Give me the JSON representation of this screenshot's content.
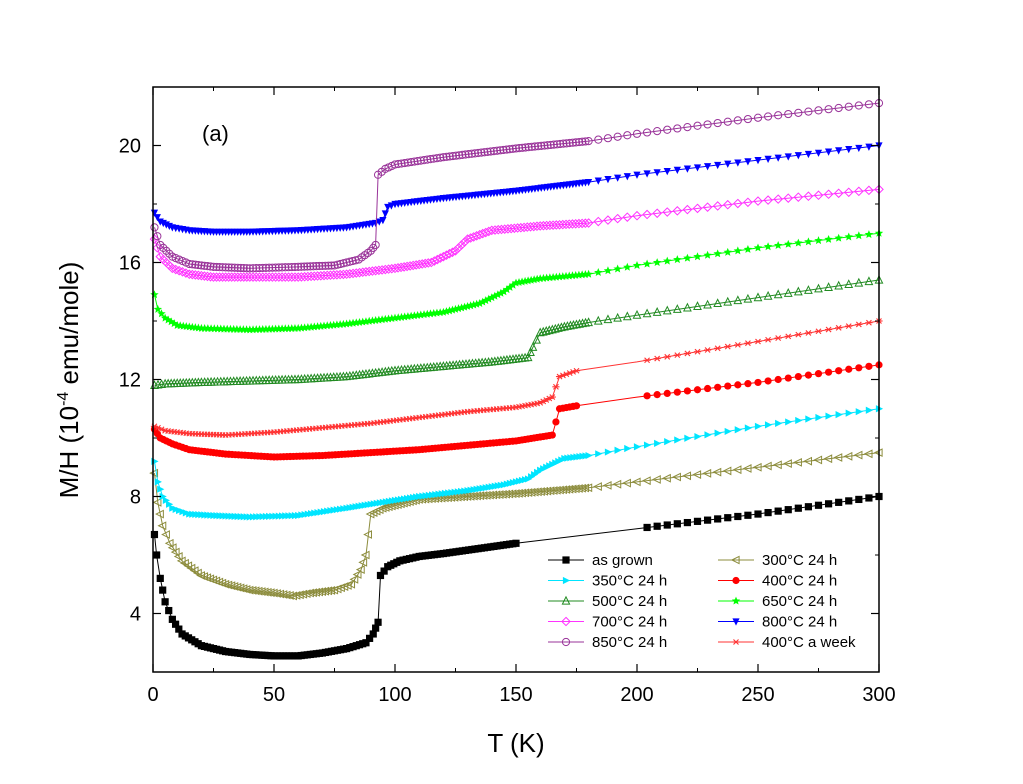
{
  "chart_data": {
    "type": "scatter",
    "panel_label": "(a)",
    "xlabel": "T (K)",
    "ylabel_parts": [
      "M/H (10",
      "-4",
      " emu/mole)"
    ],
    "xlim": [
      0,
      300
    ],
    "ylim": [
      2,
      22
    ],
    "x_ticks": [
      0,
      50,
      100,
      150,
      200,
      250,
      300
    ],
    "y_ticks": [
      4,
      8,
      12,
      16,
      20
    ],
    "grid": false,
    "legend_position": "bottom-right",
    "series": [
      {
        "name": "as grown",
        "color": "#000000",
        "marker": "square",
        "points": [
          [
            0.6,
            6.7
          ],
          [
            1.5,
            6.0
          ],
          [
            3,
            5.2
          ],
          [
            5,
            4.4
          ],
          [
            8,
            3.8
          ],
          [
            12,
            3.3
          ],
          [
            20,
            2.9
          ],
          [
            30,
            2.7
          ],
          [
            40,
            2.6
          ],
          [
            50,
            2.55
          ],
          [
            60,
            2.55
          ],
          [
            70,
            2.65
          ],
          [
            80,
            2.8
          ],
          [
            88,
            3.0
          ],
          [
            91,
            3.3
          ],
          [
            93,
            3.7
          ],
          [
            94,
            5.3
          ],
          [
            97,
            5.6
          ],
          [
            102,
            5.8
          ],
          [
            110,
            5.95
          ],
          [
            120,
            6.05
          ],
          [
            150,
            6.4
          ],
          [
            200,
            6.9
          ],
          [
            250,
            7.4
          ],
          [
            300,
            8.0
          ]
        ]
      },
      {
        "name": "300°C 24 h",
        "color": "#8c8c3c",
        "marker": "tri-left",
        "points": [
          [
            0.6,
            8.8
          ],
          [
            2,
            7.8
          ],
          [
            4,
            7.0
          ],
          [
            7,
            6.4
          ],
          [
            12,
            5.8
          ],
          [
            20,
            5.3
          ],
          [
            30,
            5.0
          ],
          [
            40,
            4.8
          ],
          [
            50,
            4.7
          ],
          [
            58,
            4.6
          ],
          [
            65,
            4.7
          ],
          [
            75,
            4.8
          ],
          [
            82,
            5.0
          ],
          [
            86,
            5.5
          ],
          [
            88,
            6.0
          ],
          [
            90,
            7.4
          ],
          [
            95,
            7.6
          ],
          [
            110,
            7.9
          ],
          [
            130,
            8.0
          ],
          [
            150,
            8.1
          ],
          [
            180,
            8.3
          ],
          [
            200,
            8.5
          ],
          [
            250,
            9.0
          ],
          [
            300,
            9.5
          ]
        ]
      },
      {
        "name": "350°C 24 h",
        "color": "#00e5ff",
        "marker": "tri-right",
        "points": [
          [
            0.6,
            9.2
          ],
          [
            2,
            8.5
          ],
          [
            4,
            8.0
          ],
          [
            8,
            7.6
          ],
          [
            15,
            7.4
          ],
          [
            25,
            7.35
          ],
          [
            40,
            7.3
          ],
          [
            60,
            7.35
          ],
          [
            80,
            7.6
          ],
          [
            95,
            7.8
          ],
          [
            110,
            8.0
          ],
          [
            130,
            8.2
          ],
          [
            145,
            8.4
          ],
          [
            155,
            8.6
          ],
          [
            160,
            8.9
          ],
          [
            165,
            9.1
          ],
          [
            170,
            9.3
          ],
          [
            180,
            9.4
          ],
          [
            200,
            9.7
          ],
          [
            250,
            10.4
          ],
          [
            300,
            11.0
          ]
        ]
      },
      {
        "name": "400°C 24 h",
        "color": "#ff0000",
        "marker": "circle",
        "points": [
          [
            0.6,
            10.3
          ],
          [
            3,
            10.0
          ],
          [
            8,
            9.8
          ],
          [
            15,
            9.6
          ],
          [
            30,
            9.45
          ],
          [
            50,
            9.35
          ],
          [
            70,
            9.4
          ],
          [
            90,
            9.5
          ],
          [
            110,
            9.6
          ],
          [
            130,
            9.75
          ],
          [
            150,
            9.9
          ],
          [
            165,
            10.1
          ],
          [
            168,
            11.0
          ],
          [
            175,
            11.1
          ],
          [
            200,
            11.4
          ],
          [
            250,
            11.9
          ],
          [
            300,
            12.5
          ]
        ]
      },
      {
        "name": "500°C 24 h",
        "color": "#228b22",
        "marker": "tri-up",
        "points": [
          [
            0.6,
            11.8
          ],
          [
            5,
            11.85
          ],
          [
            20,
            11.9
          ],
          [
            40,
            11.95
          ],
          [
            60,
            12.0
          ],
          [
            80,
            12.1
          ],
          [
            100,
            12.3
          ],
          [
            120,
            12.45
          ],
          [
            140,
            12.6
          ],
          [
            155,
            12.75
          ],
          [
            157,
            13.1
          ],
          [
            160,
            13.6
          ],
          [
            170,
            13.8
          ],
          [
            180,
            13.95
          ],
          [
            200,
            14.2
          ],
          [
            250,
            14.8
          ],
          [
            300,
            15.4
          ]
        ]
      },
      {
        "name": "650°C 24 h",
        "color": "#00ff00",
        "marker": "star",
        "points": [
          [
            0.6,
            14.9
          ],
          [
            2,
            14.4
          ],
          [
            5,
            14.1
          ],
          [
            10,
            13.85
          ],
          [
            20,
            13.75
          ],
          [
            40,
            13.7
          ],
          [
            60,
            13.75
          ],
          [
            80,
            13.9
          ],
          [
            100,
            14.1
          ],
          [
            120,
            14.3
          ],
          [
            135,
            14.6
          ],
          [
            145,
            15.0
          ],
          [
            150,
            15.3
          ],
          [
            160,
            15.45
          ],
          [
            180,
            15.6
          ],
          [
            200,
            15.9
          ],
          [
            250,
            16.5
          ],
          [
            300,
            17.0
          ]
        ]
      },
      {
        "name": "700°C 24 h",
        "color": "#ff33ff",
        "marker": "diamond",
        "points": [
          [
            0.6,
            16.8
          ],
          [
            3,
            16.2
          ],
          [
            8,
            15.8
          ],
          [
            15,
            15.6
          ],
          [
            25,
            15.5
          ],
          [
            40,
            15.5
          ],
          [
            60,
            15.5
          ],
          [
            80,
            15.6
          ],
          [
            100,
            15.8
          ],
          [
            115,
            16.0
          ],
          [
            125,
            16.4
          ],
          [
            130,
            16.8
          ],
          [
            140,
            17.1
          ],
          [
            160,
            17.25
          ],
          [
            180,
            17.35
          ],
          [
            200,
            17.6
          ],
          [
            250,
            18.1
          ],
          [
            300,
            18.5
          ]
        ]
      },
      {
        "name": "800°C 24 h",
        "color": "#0000ff",
        "marker": "tri-down",
        "points": [
          [
            0.6,
            17.7
          ],
          [
            3,
            17.4
          ],
          [
            8,
            17.2
          ],
          [
            15,
            17.1
          ],
          [
            25,
            17.05
          ],
          [
            40,
            17.05
          ],
          [
            60,
            17.1
          ],
          [
            80,
            17.2
          ],
          [
            92,
            17.35
          ],
          [
            95,
            17.45
          ],
          [
            97,
            17.9
          ],
          [
            100,
            18.0
          ],
          [
            120,
            18.2
          ],
          [
            150,
            18.45
          ],
          [
            180,
            18.75
          ],
          [
            200,
            19.0
          ],
          [
            250,
            19.5
          ],
          [
            300,
            20.0
          ]
        ]
      },
      {
        "name": "850°C 24 h",
        "color": "#993399",
        "marker": "circle-open",
        "points": [
          [
            0.6,
            17.2
          ],
          [
            3,
            16.6
          ],
          [
            8,
            16.2
          ],
          [
            15,
            15.95
          ],
          [
            25,
            15.85
          ],
          [
            40,
            15.8
          ],
          [
            60,
            15.85
          ],
          [
            75,
            15.9
          ],
          [
            85,
            16.1
          ],
          [
            90,
            16.4
          ],
          [
            92,
            16.6
          ],
          [
            93,
            19.0
          ],
          [
            96,
            19.2
          ],
          [
            100,
            19.35
          ],
          [
            120,
            19.6
          ],
          [
            150,
            19.9
          ],
          [
            180,
            20.15
          ],
          [
            200,
            20.4
          ],
          [
            250,
            20.95
          ],
          [
            300,
            21.45
          ]
        ]
      },
      {
        "name": "400°C a week",
        "color": "#ff3333",
        "marker": "asterisk",
        "points": [
          [
            0.6,
            10.4
          ],
          [
            5,
            10.25
          ],
          [
            15,
            10.15
          ],
          [
            30,
            10.1
          ],
          [
            50,
            10.2
          ],
          [
            70,
            10.35
          ],
          [
            90,
            10.5
          ],
          [
            110,
            10.7
          ],
          [
            130,
            10.9
          ],
          [
            150,
            11.05
          ],
          [
            160,
            11.2
          ],
          [
            165,
            11.4
          ],
          [
            168,
            12.1
          ],
          [
            175,
            12.3
          ],
          [
            200,
            12.6
          ],
          [
            250,
            13.3
          ],
          [
            300,
            14.0
          ]
        ]
      }
    ]
  }
}
